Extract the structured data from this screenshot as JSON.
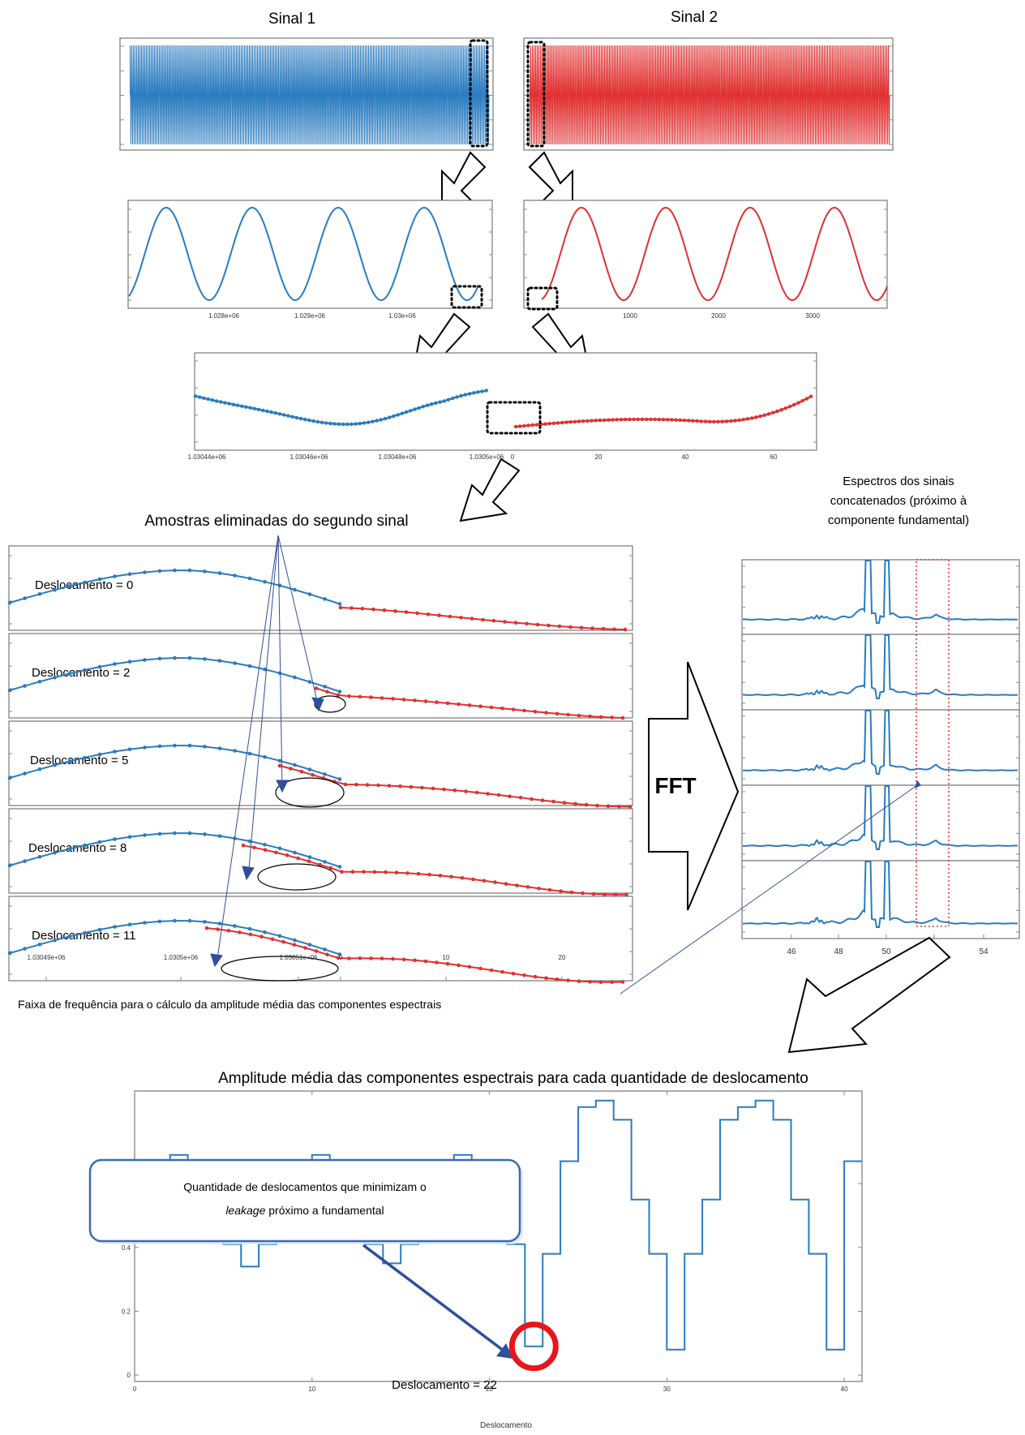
{
  "top": {
    "signal1_title": "Sinal 1",
    "signal2_title": "Sinal 2",
    "zoom1_ticks": [
      "1.028e+06",
      "1.029e+06",
      "1.03e+06"
    ],
    "zoom2_ticks": [
      "1000",
      "2000",
      "3000"
    ],
    "junction_ticks_left": [
      "1.03044e+06",
      "1.03046e+06",
      "1.03048e+06",
      "1.0305e+06"
    ],
    "junction_ticks_right": [
      "0",
      "20",
      "40",
      "60"
    ]
  },
  "shift_section": {
    "title": "Amostras eliminadas do segundo sinal",
    "shift_labels": [
      "Deslocamento = 0",
      "Deslocamento = 2",
      "Deslocamento = 5",
      "Deslocamento = 8",
      "Deslocamento = 11"
    ],
    "shift_values": [
      0,
      2,
      5,
      8,
      11
    ],
    "x_ticks_left": [
      "1.03049e+06",
      "1.0305e+06",
      "1.03051e+06"
    ],
    "x_ticks_right": [
      "0",
      "10",
      "20"
    ]
  },
  "fft_label": "FFT",
  "spectra": {
    "title_lines": [
      "Espectros dos sinais",
      "concatenados (próximo à",
      "componente fundamental)"
    ],
    "x_ticks": [
      "46",
      "48",
      "50",
      "52",
      "54"
    ]
  },
  "band_caption": "Faixa de frequência para o cálculo da amplitude média das componentes espectrais",
  "bottom": {
    "title": "Amplitude média das componentes espectrais para cada quantidade de deslocamento",
    "callout_text": {
      "line1": "Quantidade de deslocamentos que minimizam o",
      "line2_em": "leakage",
      "line2_rest": " próximo a fundamental"
    },
    "min_annotation": "Deslocamento = 22"
  },
  "chart_data": {
    "type": "line",
    "step": true,
    "title": "Amplitude média das componentes espectrais para cada quantidade de deslocamento",
    "xlabel": "Deslocamento",
    "ylabel": "",
    "xlim": [
      0,
      41
    ],
    "ylim": [
      -0.02,
      0.89
    ],
    "x_ticks": [
      0,
      10,
      20,
      30,
      40
    ],
    "y_ticks": [
      0,
      0.2,
      0.4,
      0.6
    ],
    "x": [
      0,
      1,
      2,
      3,
      4,
      5,
      6,
      7,
      8,
      9,
      10,
      11,
      12,
      13,
      14,
      15,
      16,
      17,
      18,
      19,
      20,
      21,
      22,
      23,
      24,
      25,
      26,
      27,
      28,
      29,
      30,
      31,
      32,
      33,
      34,
      35,
      36,
      37,
      38,
      39,
      40
    ],
    "series": [
      {
        "color": "#2a7bbf",
        "values": [
          0.54,
          0.66,
          0.69,
          0.66,
          0.53,
          0.41,
          0.34,
          0.41,
          0.53,
          0.66,
          0.69,
          0.66,
          0.53,
          0.41,
          0.35,
          0.41,
          0.53,
          0.66,
          0.69,
          0.66,
          0.53,
          0.41,
          0.09,
          0.38,
          0.67,
          0.84,
          0.86,
          0.8,
          0.55,
          0.38,
          0.08,
          0.38,
          0.55,
          0.8,
          0.84,
          0.86,
          0.8,
          0.55,
          0.38,
          0.08,
          0.67
        ]
      }
    ],
    "highlight_x": 22
  }
}
